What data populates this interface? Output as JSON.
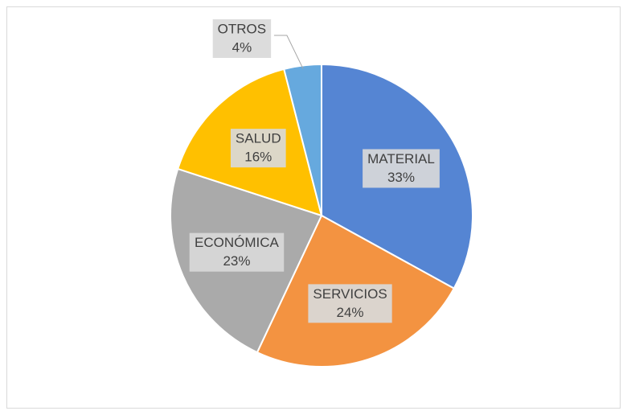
{
  "chart_data": {
    "type": "pie",
    "categories": [
      "MATERIAL",
      "SERVICIOS",
      "ECONÓMICA",
      "SALUD",
      "OTROS"
    ],
    "values": [
      33,
      24,
      23,
      16,
      4
    ],
    "value_labels": [
      "33%",
      "24%",
      "23%",
      "16%",
      "4%"
    ],
    "colors": [
      "#5585d3",
      "#f39341",
      "#aaaaaa",
      "#ffc000",
      "#66a9de"
    ]
  }
}
